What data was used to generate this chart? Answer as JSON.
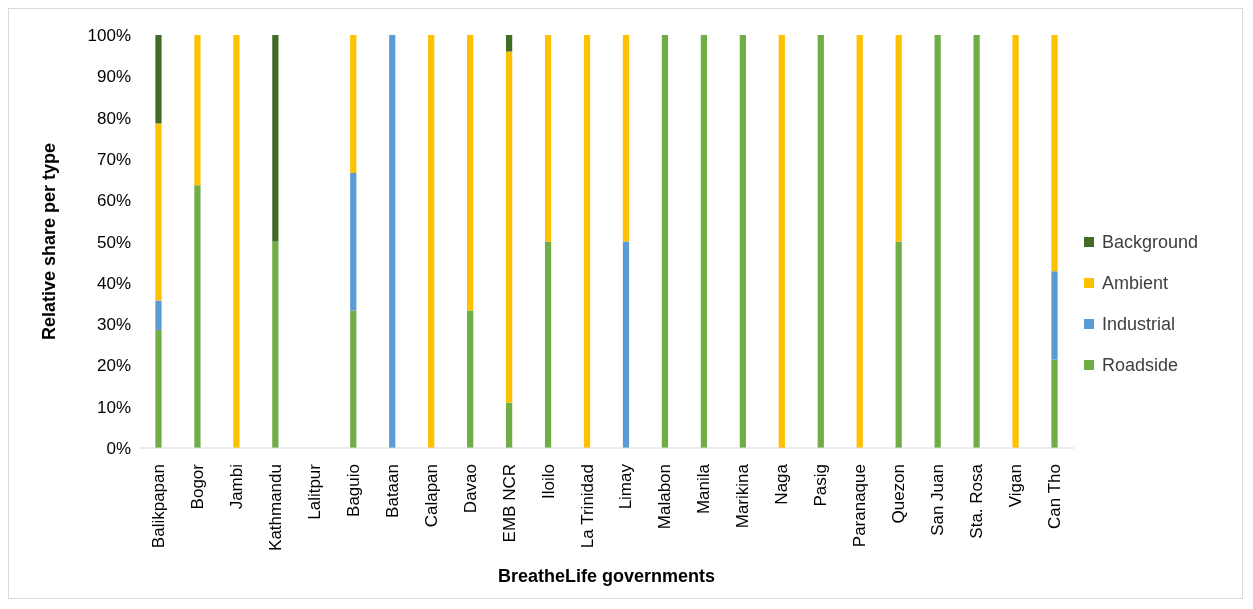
{
  "chart_data": {
    "type": "bar",
    "stacked": true,
    "xlabel": "BreatheLife governments",
    "ylabel": "Relative share per type",
    "categories": [
      "Balikpapan",
      "Bogor",
      "Jambi",
      "Kathmandu",
      "Lalitpur",
      "Baguio",
      "Bataan",
      "Calapan",
      "Davao",
      "EMB NCR",
      "Iloilo",
      "La Trinidad",
      "Limay",
      "Malabon",
      "Manila",
      "Marikina",
      "Naga",
      "Pasig",
      "Paranaque",
      "Quezon",
      "San Juan",
      "Sta. Rosa",
      "Vigan",
      "Can Tho"
    ],
    "series": [
      {
        "name": "Roadside",
        "color": "#70ad47",
        "values": [
          28.6,
          63.6,
          0,
          50,
          0,
          33.3,
          0,
          0,
          33.3,
          11,
          50,
          0,
          0,
          100,
          100,
          100,
          0,
          100,
          0,
          50,
          100,
          100,
          0,
          21.4
        ]
      },
      {
        "name": "Industrial",
        "color": "#5b9bd5",
        "values": [
          7.1,
          0,
          0,
          0,
          0,
          33.3,
          100,
          0,
          0,
          0,
          0,
          0,
          50,
          0,
          0,
          0,
          0,
          0,
          0,
          0,
          0,
          0,
          0,
          21.4
        ]
      },
      {
        "name": "Ambient",
        "color": "#ffc000",
        "values": [
          42.9,
          36.4,
          100,
          0,
          0,
          33.4,
          0,
          100,
          66.7,
          85,
          50,
          100,
          50,
          0,
          0,
          0,
          100,
          0,
          100,
          50,
          0,
          0,
          100,
          57.2
        ]
      },
      {
        "name": "Background",
        "color": "#426b28",
        "values": [
          21.4,
          0,
          0,
          50,
          0,
          0,
          0,
          0,
          0,
          4,
          0,
          0,
          0,
          0,
          0,
          0,
          0,
          0,
          0,
          0,
          0,
          0,
          0,
          0
        ]
      }
    ],
    "ylim": [
      0,
      100
    ],
    "yticks": [
      {
        "value": 0,
        "label": "0%"
      },
      {
        "value": 10,
        "label": "10%"
      },
      {
        "value": 20,
        "label": "20%"
      },
      {
        "value": 30,
        "label": "30%"
      },
      {
        "value": 40,
        "label": "40%"
      },
      {
        "value": 50,
        "label": "50%"
      },
      {
        "value": 60,
        "label": "60%"
      },
      {
        "value": 70,
        "label": "70%"
      },
      {
        "value": 80,
        "label": "80%"
      },
      {
        "value": 90,
        "label": "90%"
      },
      {
        "value": 100,
        "label": "100%"
      }
    ],
    "grid": false,
    "legend": "right"
  }
}
